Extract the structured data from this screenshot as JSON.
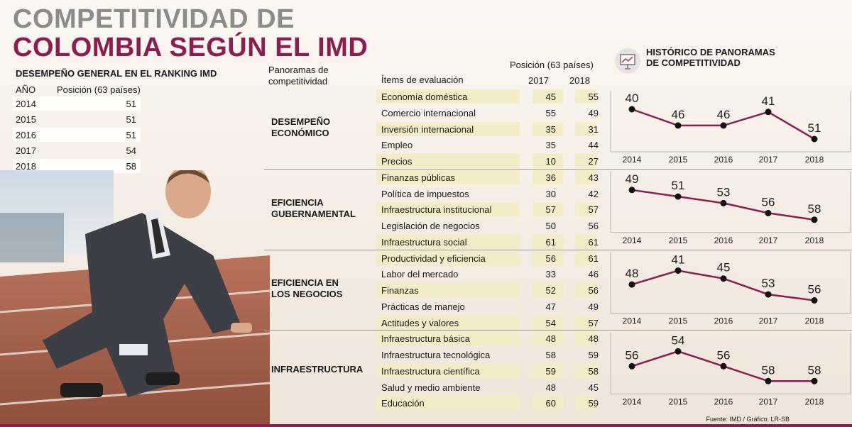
{
  "title_line1": "COMPETITIVIDAD DE",
  "title_line2": "COLOMBIA SEGÚN EL IMD",
  "ranking": {
    "subtitle": "DESEMPEÑO GENERAL EN EL RANKING IMD",
    "col_year": "AÑO",
    "col_position": "Posición (63 países)",
    "rows": [
      {
        "year": "2014",
        "value": "51"
      },
      {
        "year": "2015",
        "value": "51"
      },
      {
        "year": "2016",
        "value": "51"
      },
      {
        "year": "2017",
        "value": "54"
      },
      {
        "year": "2018",
        "value": "58"
      }
    ]
  },
  "table": {
    "header_panoramas": "Panoramas de competitividad",
    "header_items": "Ítems de evaluación",
    "header_position": "Posición (63 países)",
    "header_2017": "2017",
    "header_2018": "2018",
    "groups": [
      {
        "name": "DESEMPEÑO ECONÓMICO",
        "name_lines": [
          "DESEMPEÑO",
          "ECONÓMICO"
        ],
        "rows": [
          {
            "item": "Economía doméstica",
            "v2017": "45",
            "v2018": "55"
          },
          {
            "item": "Comercio internacional",
            "v2017": "55",
            "v2018": "49"
          },
          {
            "item": "Inversión internacional",
            "v2017": "35",
            "v2018": "31"
          },
          {
            "item": "Empleo",
            "v2017": "35",
            "v2018": "44"
          },
          {
            "item": "Precios",
            "v2017": "10",
            "v2018": "27"
          }
        ]
      },
      {
        "name": "EFICIENCIA GUBERNAMENTAL",
        "name_lines": [
          "EFICIENCIA",
          "GUBERNAMENTAL"
        ],
        "rows": [
          {
            "item": "Finanzas públicas",
            "v2017": "36",
            "v2018": "43"
          },
          {
            "item": "Política de impuestos",
            "v2017": "30",
            "v2018": "42"
          },
          {
            "item": "Infraestructura institucional",
            "v2017": "57",
            "v2018": "57"
          },
          {
            "item": "Legislación de negocios",
            "v2017": "50",
            "v2018": "56"
          },
          {
            "item": "Infraestructura social",
            "v2017": "61",
            "v2018": "61"
          }
        ]
      },
      {
        "name": "EFICIENCIA EN LOS NEGOCIOS",
        "name_lines": [
          "EFICIENCIA EN",
          "LOS NEGOCIOS"
        ],
        "rows": [
          {
            "item": "Productividad y eficiencia",
            "v2017": "56",
            "v2018": "61"
          },
          {
            "item": "Labor del mercado",
            "v2017": "33",
            "v2018": "46"
          },
          {
            "item": "Finanzas",
            "v2017": "52",
            "v2018": "56"
          },
          {
            "item": "Prácticas de manejo",
            "v2017": "47",
            "v2018": "49"
          },
          {
            "item": "Actitudes y valores",
            "v2017": "54",
            "v2018": "57"
          }
        ]
      },
      {
        "name": "INFRAESTRUCTURA",
        "name_lines": [
          "INFRAESTRUCTURA"
        ],
        "rows": [
          {
            "item": "Infraestructura básica",
            "v2017": "48",
            "v2018": "48"
          },
          {
            "item": "Infraestructura tecnológica",
            "v2017": "58",
            "v2018": "59"
          },
          {
            "item": "Infraestructura científica",
            "v2017": "59",
            "v2018": "58"
          },
          {
            "item": "Salud y medio ambiente",
            "v2017": "48",
            "v2018": "45"
          },
          {
            "item": "Educación",
            "v2017": "60",
            "v2018": "59"
          }
        ]
      }
    ]
  },
  "history_title_lines": [
    "HISTÓRICO DE PANORAMAS",
    "DE COMPETITIVIDAD"
  ],
  "chart_data": [
    {
      "type": "line",
      "x": [
        2014,
        2015,
        2016,
        2017,
        2018
      ],
      "values": [
        40,
        46,
        46,
        41,
        51
      ],
      "series_color": "#8a1e4e"
    },
    {
      "type": "line",
      "x": [
        2014,
        2015,
        2016,
        2017,
        2018
      ],
      "values": [
        49,
        51,
        53,
        56,
        58
      ],
      "series_color": "#8a1e4e"
    },
    {
      "type": "line",
      "x": [
        2014,
        2015,
        2016,
        2017,
        2018
      ],
      "values": [
        48,
        41,
        45,
        53,
        56
      ],
      "series_color": "#8a1e4e"
    },
    {
      "type": "line",
      "x": [
        2014,
        2015,
        2016,
        2017,
        2018
      ],
      "values": [
        56,
        54,
        56,
        58,
        58
      ],
      "series_color": "#8a1e4e"
    }
  ],
  "source": "Fuente: IMD / Gráfico: LR-SB",
  "colors": {
    "accent": "#8a1e4e",
    "title_gray": "#8c8c8c",
    "row_highlight": "#f3edc7"
  },
  "icons": {
    "history": "presentation-chart-icon",
    "photo": "sprinter-photo-illustration"
  }
}
